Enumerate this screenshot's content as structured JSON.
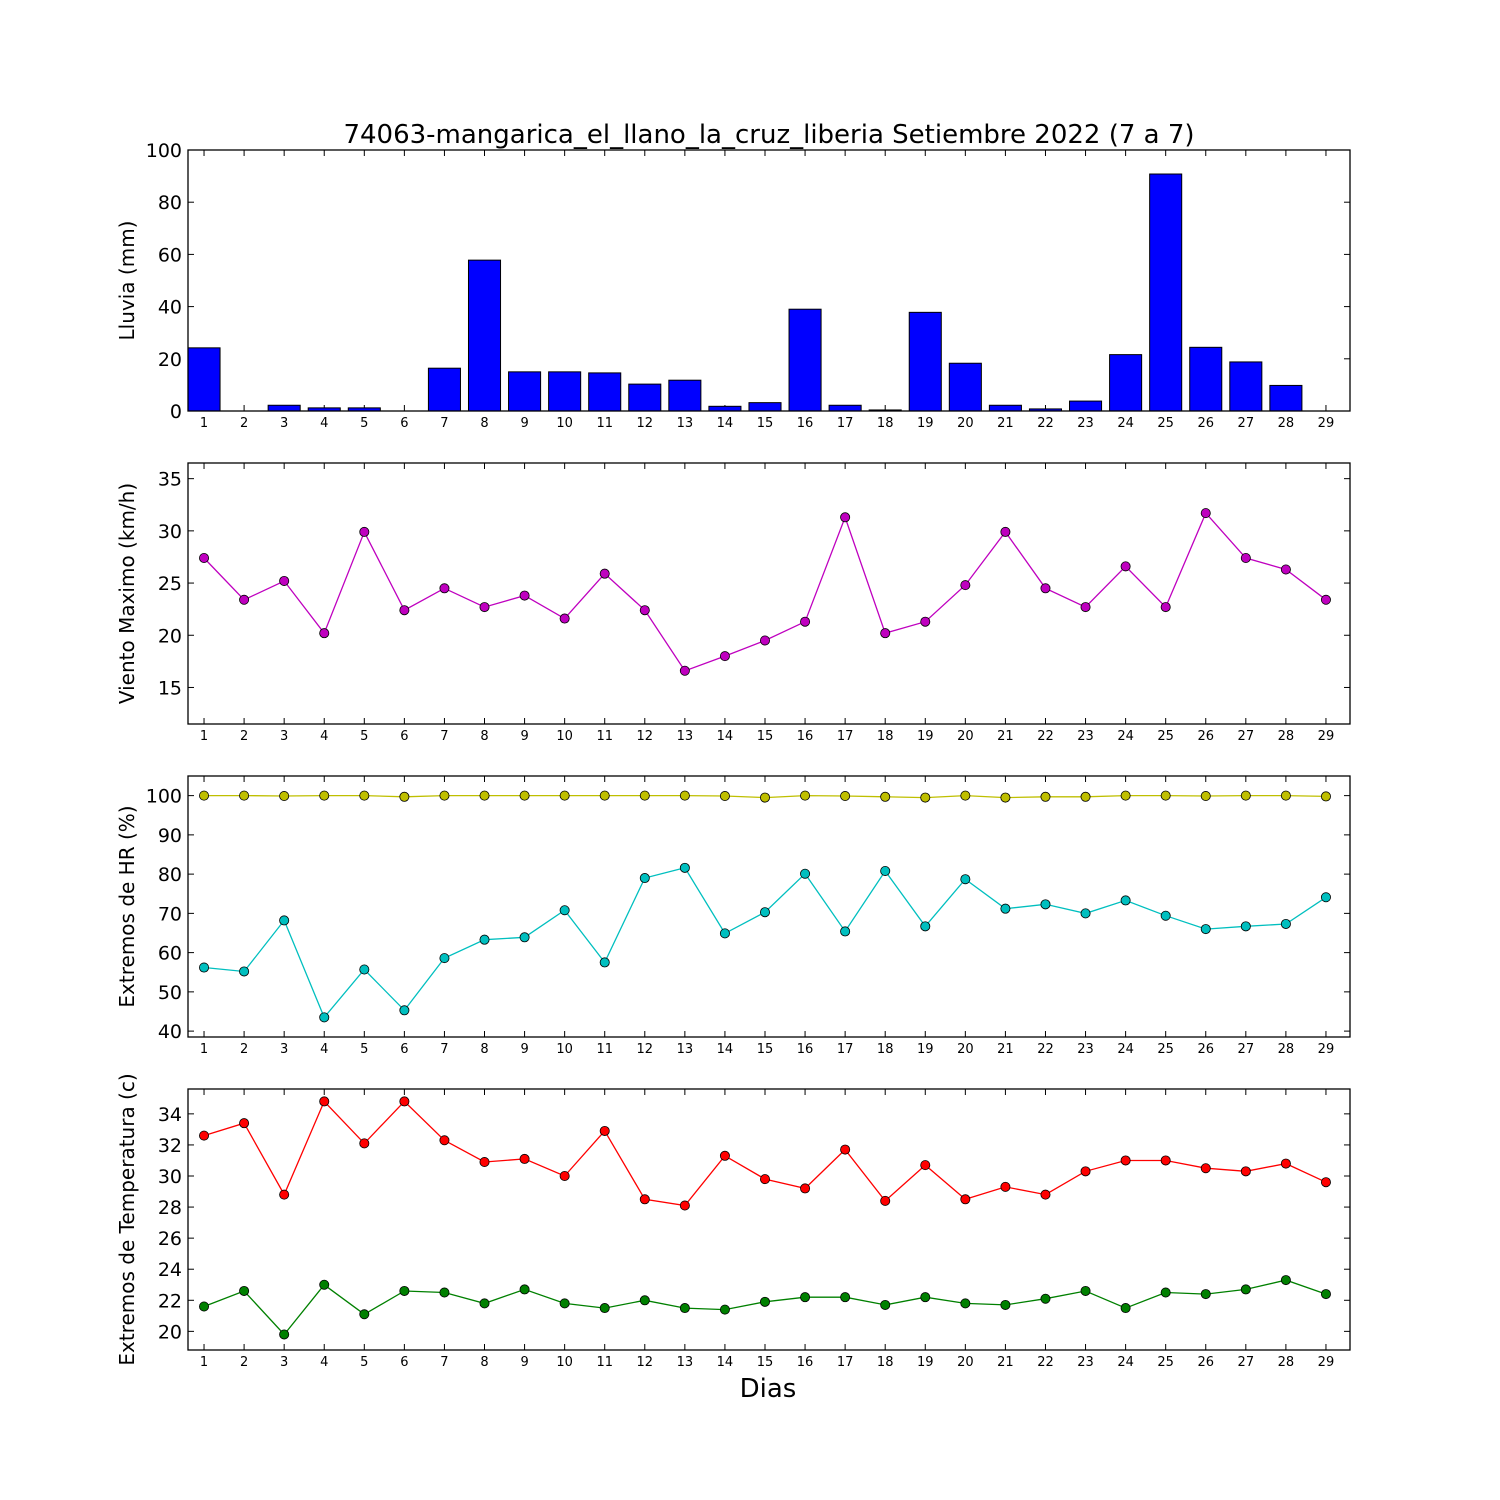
{
  "title": "74063-mangarica_el_llano_la_cruz_liberia Setiembre 2022  (7 a 7)",
  "xlabel": "Dias",
  "chart_data": [
    {
      "type": "bar",
      "ylabel": "Lluvia (mm)",
      "ylim": [
        0,
        100
      ],
      "yticks": [
        0,
        20,
        40,
        60,
        80,
        100
      ],
      "xlim": [
        0.6,
        29.6
      ],
      "x": [
        1,
        2,
        3,
        4,
        5,
        6,
        7,
        8,
        9,
        10,
        11,
        12,
        13,
        14,
        15,
        16,
        17,
        18,
        19,
        20,
        21,
        22,
        23,
        24,
        25,
        26,
        27,
        28,
        29
      ],
      "series": [
        {
          "color": "#0000ff",
          "values": [
            24.2,
            0,
            2.2,
            1.2,
            1.2,
            0,
            16.4,
            57.8,
            15,
            15,
            14.6,
            10.3,
            11.8,
            1.8,
            3.2,
            39,
            2.2,
            0.4,
            37.8,
            18.3,
            2.2,
            0.8,
            3.8,
            21.6,
            90.8,
            24.4,
            18.8,
            9.8,
            0
          ]
        }
      ]
    },
    {
      "type": "line",
      "ylabel": "Viento Maximo (km/h)",
      "ylim": [
        11.5,
        36.5
      ],
      "yticks": [
        15,
        20,
        25,
        30,
        35
      ],
      "xlim": [
        0.6,
        29.6
      ],
      "x": [
        1,
        2,
        3,
        4,
        5,
        6,
        7,
        8,
        9,
        10,
        11,
        12,
        13,
        14,
        15,
        16,
        17,
        18,
        19,
        20,
        21,
        22,
        23,
        24,
        25,
        26,
        27,
        28,
        29
      ],
      "series": [
        {
          "color": "#bf00bf",
          "values": [
            27.4,
            23.4,
            25.2,
            20.2,
            29.9,
            22.4,
            24.5,
            22.7,
            23.8,
            21.6,
            25.9,
            22.4,
            16.6,
            18.0,
            19.5,
            21.3,
            31.3,
            20.2,
            21.3,
            24.8,
            29.9,
            24.5,
            22.7,
            26.6,
            22.7,
            31.7,
            27.4,
            26.3,
            23.4
          ]
        }
      ]
    },
    {
      "type": "line",
      "ylabel": "Extremos de HR (%)",
      "ylim": [
        38.5,
        105
      ],
      "yticks": [
        40,
        50,
        60,
        70,
        80,
        90,
        100
      ],
      "xlim": [
        0.6,
        29.6
      ],
      "x": [
        1,
        2,
        3,
        4,
        5,
        6,
        7,
        8,
        9,
        10,
        11,
        12,
        13,
        14,
        15,
        16,
        17,
        18,
        19,
        20,
        21,
        22,
        23,
        24,
        25,
        26,
        27,
        28,
        29
      ],
      "series": [
        {
          "color": "#bfbf00",
          "values": [
            100,
            100,
            99.9,
            100,
            100,
            99.7,
            100,
            100,
            100,
            100,
            100,
            100,
            100,
            99.9,
            99.5,
            100,
            99.9,
            99.7,
            99.5,
            100,
            99.5,
            99.7,
            99.7,
            100,
            100,
            99.9,
            100,
            100,
            99.8
          ]
        },
        {
          "color": "#00bfbf",
          "values": [
            56.2,
            55.2,
            68.2,
            43.5,
            55.7,
            45.3,
            58.6,
            63.3,
            63.9,
            70.8,
            57.5,
            79,
            81.6,
            64.9,
            70.3,
            80.1,
            65.4,
            80.8,
            66.7,
            78.7,
            71.2,
            72.3,
            70,
            73.3,
            69.4,
            66,
            66.7,
            67.3,
            74.1
          ]
        }
      ]
    },
    {
      "type": "line",
      "ylabel": "Extremos de Temperatura (c)",
      "ylim": [
        18.8,
        35.6
      ],
      "yticks": [
        20,
        22,
        24,
        26,
        28,
        30,
        32,
        34
      ],
      "xlim": [
        0.6,
        29.6
      ],
      "x": [
        1,
        2,
        3,
        4,
        5,
        6,
        7,
        8,
        9,
        10,
        11,
        12,
        13,
        14,
        15,
        16,
        17,
        18,
        19,
        20,
        21,
        22,
        23,
        24,
        25,
        26,
        27,
        28,
        29
      ],
      "series": [
        {
          "color": "#ff0000",
          "values": [
            32.6,
            33.4,
            28.8,
            34.8,
            32.1,
            34.8,
            32.3,
            30.9,
            31.1,
            30,
            32.9,
            28.5,
            28.1,
            31.3,
            29.8,
            29.2,
            31.7,
            28.4,
            30.7,
            28.5,
            29.3,
            28.8,
            30.3,
            31,
            31,
            30.5,
            30.3,
            30.8,
            29.6
          ]
        },
        {
          "color": "#008000",
          "values": [
            21.6,
            22.6,
            19.8,
            23,
            21.1,
            22.6,
            22.5,
            21.8,
            22.7,
            21.8,
            21.5,
            22,
            21.5,
            21.4,
            21.9,
            22.2,
            22.2,
            21.7,
            22.2,
            21.8,
            21.7,
            22.1,
            22.6,
            21.5,
            22.5,
            22.4,
            22.7,
            23.3,
            22.4
          ]
        }
      ]
    }
  ]
}
